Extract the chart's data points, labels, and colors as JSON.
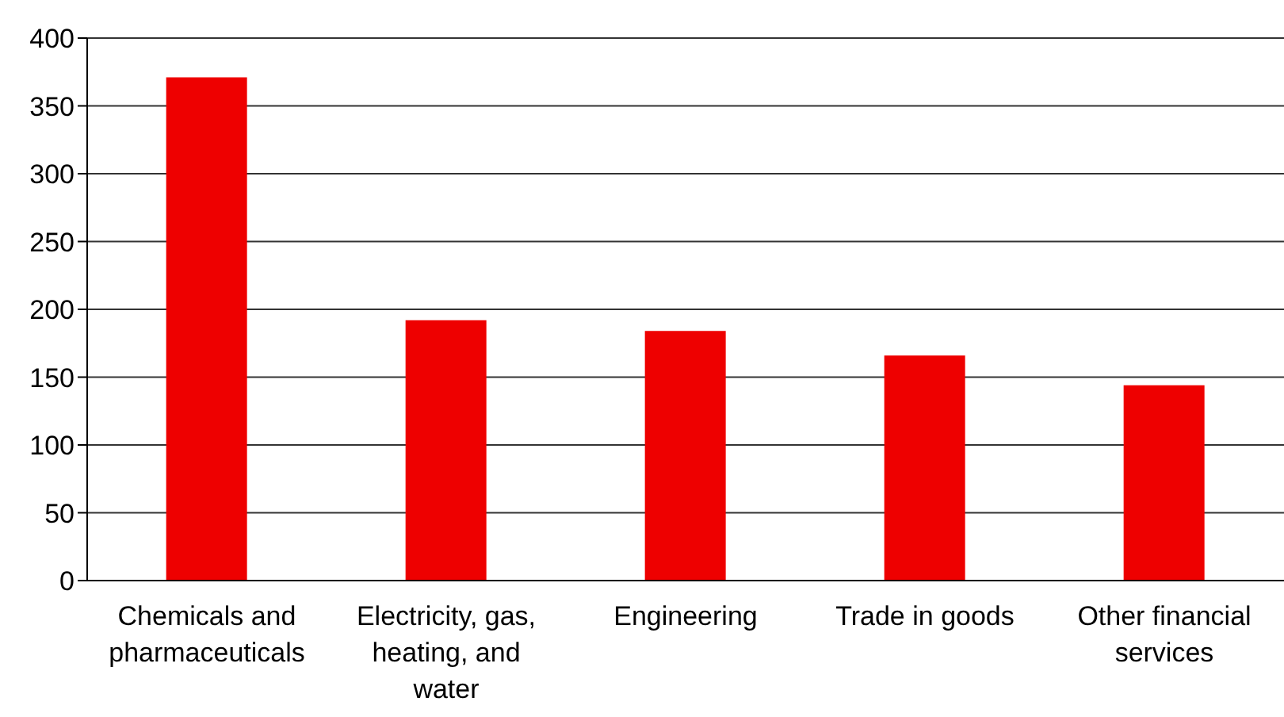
{
  "chart_data": {
    "type": "bar",
    "categories": [
      "Chemicals and pharmaceuticals",
      "Electricity, gas, heating, and water",
      "Engineering",
      "Trade in goods",
      "Other financial services"
    ],
    "values": [
      371,
      192,
      184,
      166,
      144
    ],
    "color": "#ee0000",
    "ylim": [
      0,
      400
    ],
    "yticks": [
      0,
      50,
      100,
      150,
      200,
      250,
      300,
      350,
      400
    ],
    "grid": "y"
  }
}
